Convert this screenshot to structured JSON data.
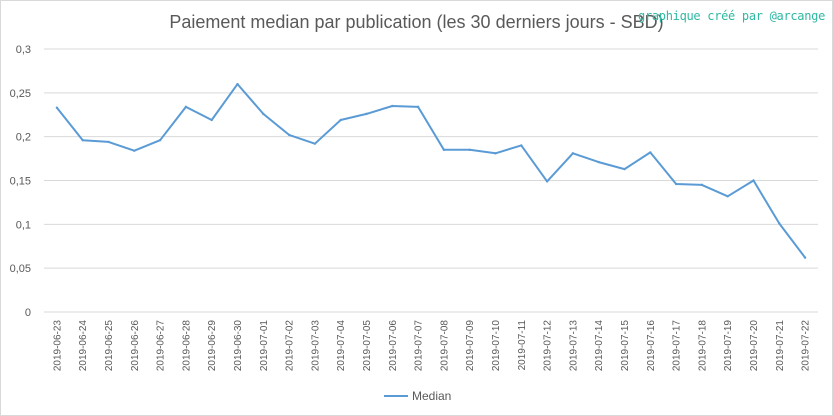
{
  "title": "Paiement median par publication (les 30 derniers jours - SBD)",
  "credit": "graphique créé par @arcange",
  "colors": {
    "series": "#5b9bd5",
    "grid": "#d9d9d9",
    "text": "#595959",
    "credit": "#2fb8a2"
  },
  "chart_data": {
    "type": "line",
    "title": "Paiement median par publication (les 30 derniers jours - SBD)",
    "xlabel": "",
    "ylabel": "",
    "ylim": [
      0,
      0.3
    ],
    "yticks": [
      "0",
      "0,05",
      "0,1",
      "0,15",
      "0,2",
      "0,25",
      "0,3"
    ],
    "grid": true,
    "legend_position": "bottom",
    "x": [
      "2019-06-23",
      "2019-06-24",
      "2019-06-25",
      "2019-06-26",
      "2019-06-27",
      "2019-06-28",
      "2019-06-29",
      "2019-06-30",
      "2019-07-01",
      "2019-07-02",
      "2019-07-03",
      "2019-07-04",
      "2019-07-05",
      "2019-07-06",
      "2019-07-07",
      "2019-07-08",
      "2019-07-09",
      "2019-07-10",
      "2019-07-11",
      "2019-07-12",
      "2019-07-13",
      "2019-07-14",
      "2019-07-15",
      "2019-07-16",
      "2019-07-17",
      "2019-07-18",
      "2019-07-19",
      "2019-07-20",
      "2019-07-21",
      "2019-07-22"
    ],
    "series": [
      {
        "name": "Median",
        "values": [
          0.233,
          0.196,
          0.194,
          0.184,
          0.196,
          0.234,
          0.219,
          0.26,
          0.226,
          0.202,
          0.192,
          0.219,
          0.226,
          0.235,
          0.234,
          0.185,
          0.185,
          0.181,
          0.19,
          0.149,
          0.181,
          0.171,
          0.163,
          0.182,
          0.146,
          0.145,
          0.132,
          0.15,
          0.101,
          0.062
        ]
      }
    ]
  }
}
